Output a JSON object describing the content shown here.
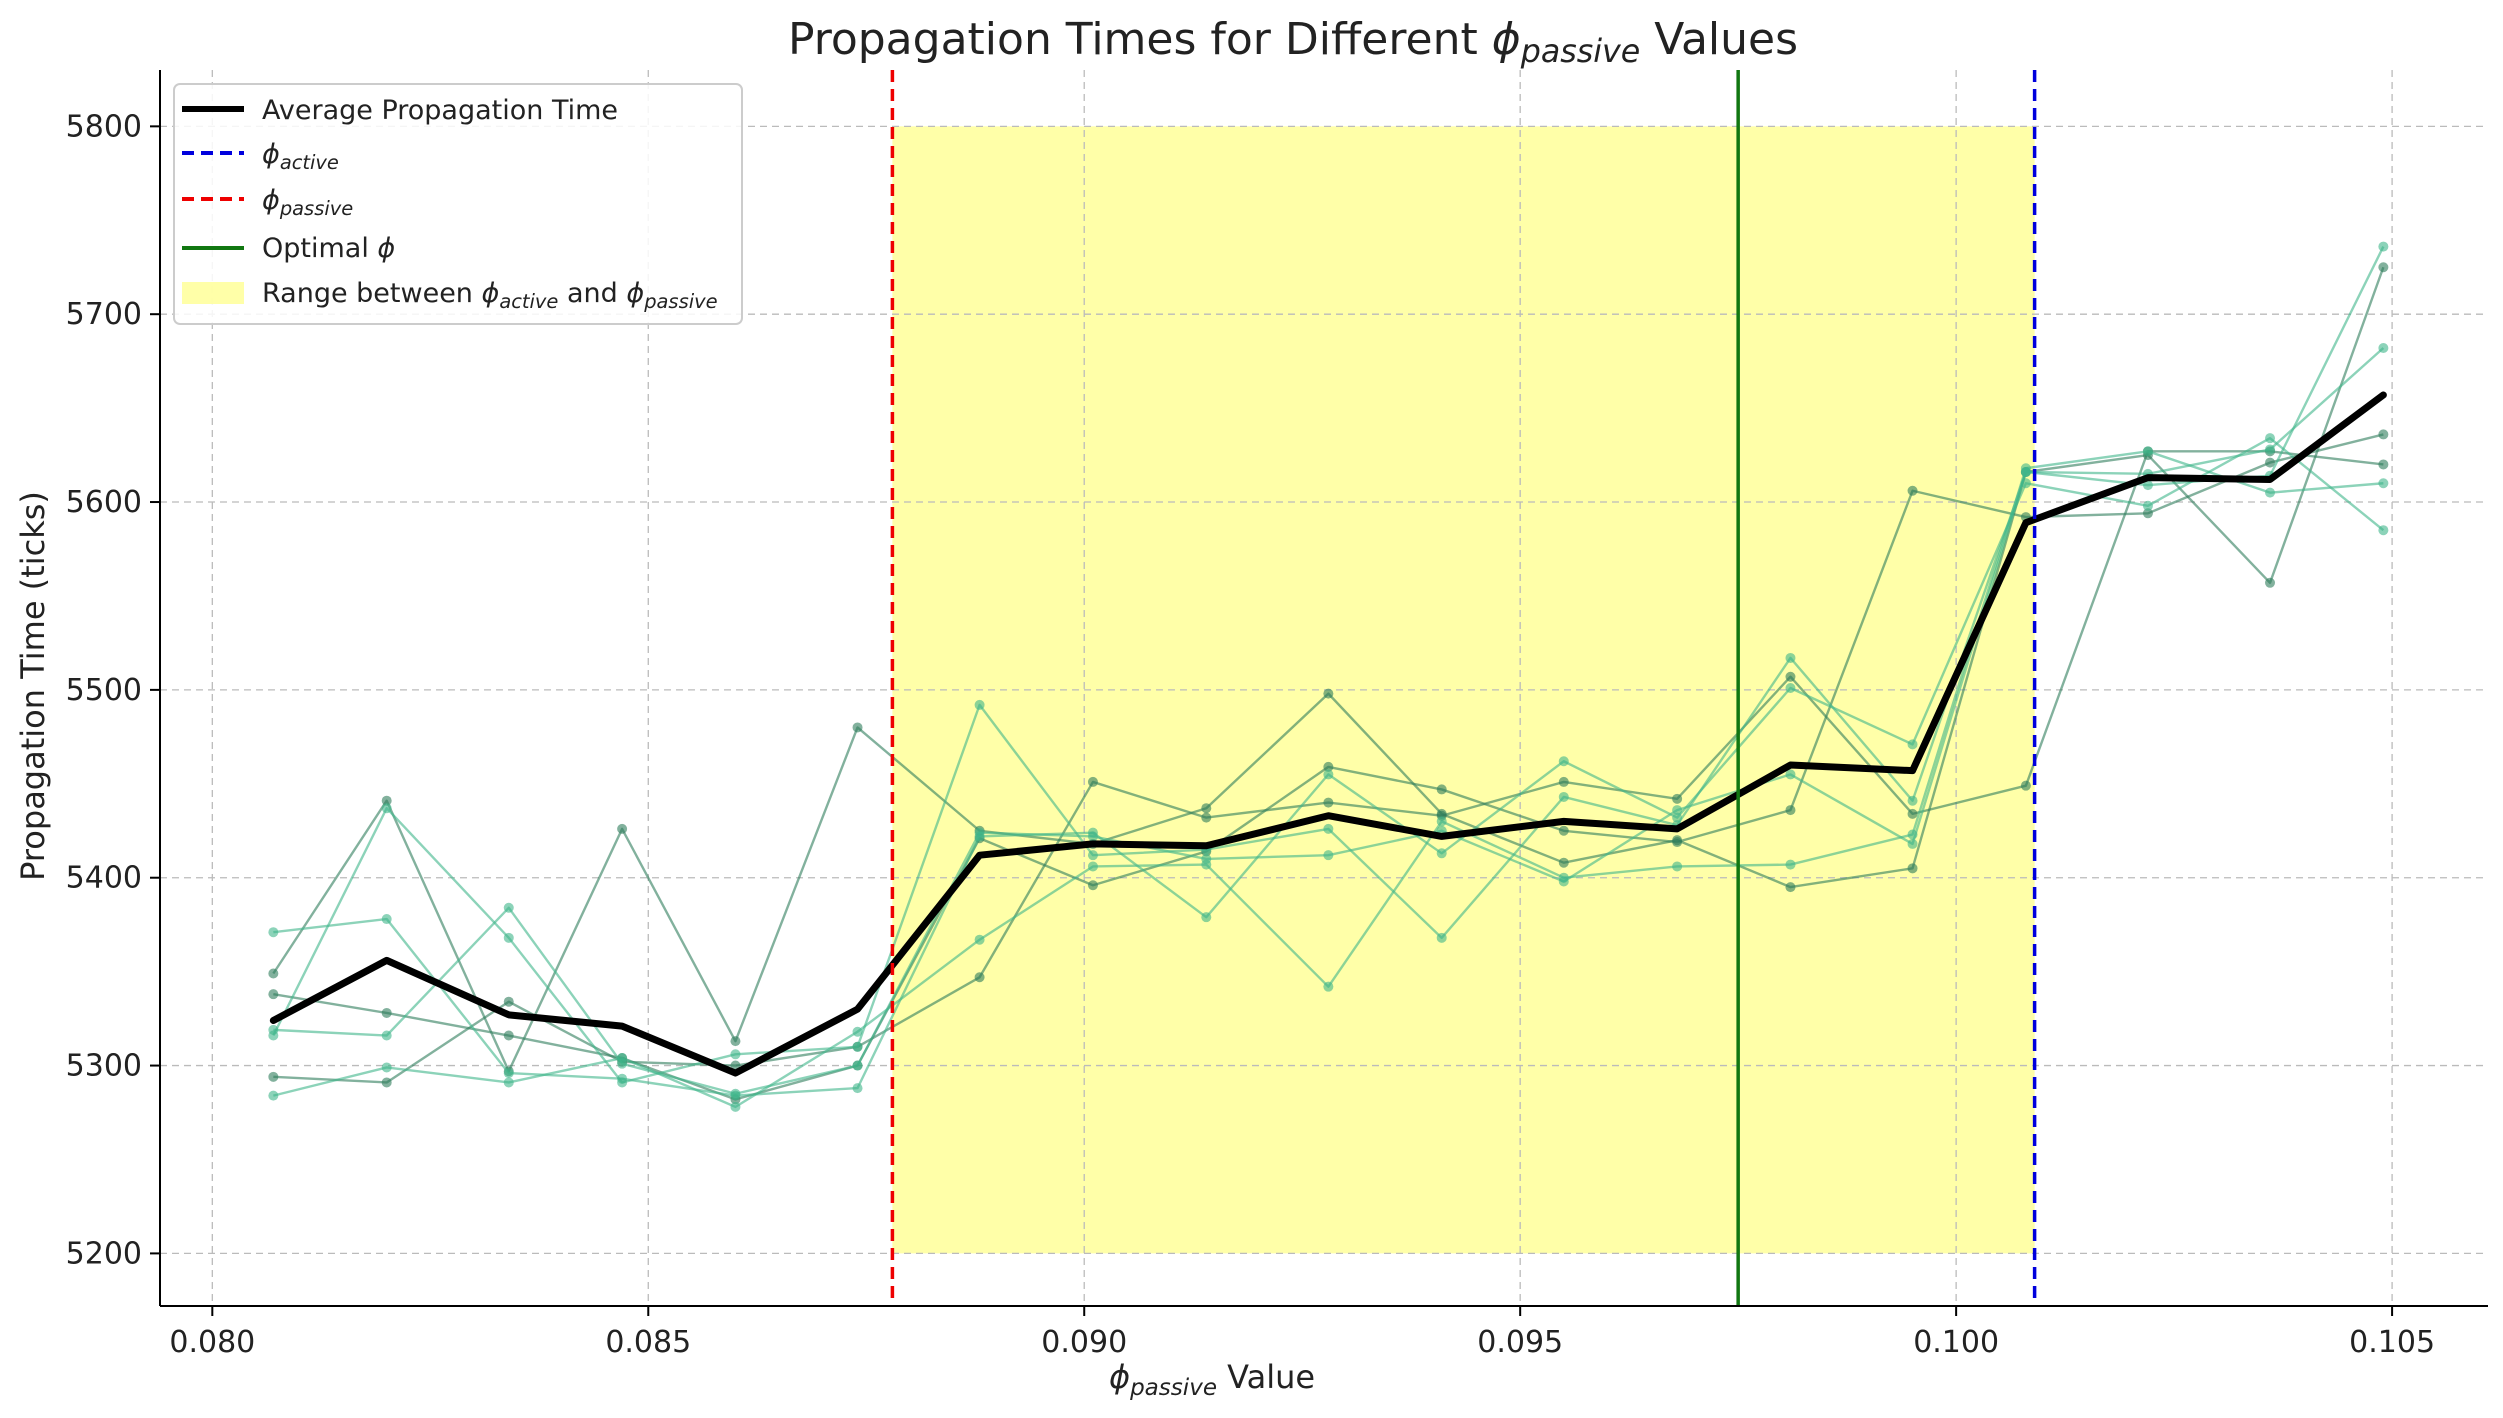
{
  "chart_data": {
    "type": "line",
    "title": {
      "prefix": "Propagation Times for Different ",
      "symbol": "ϕ",
      "subscript": "passive",
      "suffix": " Values"
    },
    "xlabel": {
      "symbol": "ϕ",
      "subscript": "passive",
      "suffix": " Value"
    },
    "ylabel": "Propagation Time (ticks)",
    "xlim": [
      0.0794,
      0.1061
    ],
    "ylim": [
      5172,
      5830
    ],
    "x_ticks": [
      0.08,
      0.085,
      0.09,
      0.095,
      0.1,
      0.105
    ],
    "x_tick_labels": [
      "0.080",
      "0.085",
      "0.090",
      "0.095",
      "0.100",
      "0.105"
    ],
    "y_ticks": [
      5200,
      5300,
      5400,
      5500,
      5600,
      5700,
      5800
    ],
    "y_tick_labels": [
      "5200",
      "5300",
      "5400",
      "5500",
      "5600",
      "5700",
      "5800"
    ],
    "grid": true,
    "legend_position": "top-left",
    "x": [
      0.0807,
      0.082,
      0.0834,
      0.0847,
      0.086,
      0.0874,
      0.0888,
      0.0901,
      0.0914,
      0.0928,
      0.0941,
      0.0955,
      0.0968,
      0.0981,
      0.0995,
      0.1008,
      0.1022,
      0.1036,
      0.1049
    ],
    "average": {
      "name": "Average Propagation Time",
      "color": "#000000",
      "values": [
        5324,
        5356,
        5327,
        5321,
        5296,
        5330,
        5412,
        5418,
        5417,
        5433,
        5422,
        5430,
        5426,
        5460,
        5457,
        5589,
        5613,
        5612,
        5657
      ]
    },
    "runs": [
      {
        "color": "#2e7d5b",
        "values": [
          5349,
          5441,
          5297,
          5426,
          5313,
          5480,
          5425,
          5418,
          5437,
          5498,
          5434,
          5408,
          5420,
          5395,
          5405,
          5616,
          5625,
          5557,
          5725
        ]
      },
      {
        "color": "#2e7d5b",
        "values": [
          5294,
          5291,
          5334,
          5302,
          5300,
          5310,
          5347,
          5451,
          5432,
          5440,
          5433,
          5451,
          5442,
          5507,
          5434,
          5449,
          5627,
          5627,
          5620
        ]
      },
      {
        "color": "#2e7d5b",
        "values": [
          5338,
          5328,
          5316,
          5304,
          5282,
          5300,
          5421,
          5396,
          5414,
          5459,
          5447,
          5425,
          5419,
          5436,
          5606,
          5592,
          5594,
          5621,
          5636
        ]
      },
      {
        "color": "#3fb68a",
        "values": [
          5371,
          5378,
          5296,
          5293,
          5284,
          5288,
          5422,
          5424,
          5379,
          5455,
          5413,
          5462,
          5432,
          5501,
          5471,
          5610,
          5598,
          5634,
          5585
        ]
      },
      {
        "color": "#3fb68a",
        "values": [
          5284,
          5299,
          5291,
          5304,
          5278,
          5318,
          5367,
          5406,
          5407,
          5342,
          5430,
          5400,
          5406,
          5407,
          5423,
          5618,
          5627,
          5605,
          5610
        ]
      },
      {
        "color": "#3fb68a",
        "values": [
          5316,
          5437,
          5368,
          5291,
          5306,
          5310,
          5492,
          5412,
          5415,
          5426,
          5368,
          5443,
          5428,
          5517,
          5441,
          5616,
          5615,
          5628,
          5682
        ]
      },
      {
        "color": "#3fb68a",
        "values": [
          5319,
          5316,
          5384,
          5301,
          5285,
          5300,
          5424,
          5422,
          5410,
          5412,
          5425,
          5398,
          5436,
          5455,
          5418,
          5616,
          5609,
          5614,
          5736
        ]
      }
    ],
    "phi_active": {
      "x": 0.1009,
      "color": "#0000dd"
    },
    "phi_passive": {
      "x": 0.0878,
      "color": "#ee0000"
    },
    "optimal_phi": {
      "x": 0.0975,
      "color": "#117711"
    },
    "shaded_range": {
      "x0": 0.0878,
      "x1": 0.1009,
      "y0": 5200,
      "y1": 5800,
      "color": "#ffff99"
    },
    "legend": {
      "average": "Average Propagation Time",
      "active": {
        "symbol": "ϕ",
        "subscript": "active"
      },
      "passive": {
        "symbol": "ϕ",
        "subscript": "passive"
      },
      "optimal": {
        "prefix": "Optimal ",
        "symbol": "ϕ"
      },
      "range": {
        "prefix": "Range between ",
        "symbol1": "ϕ",
        "subscript1": "active",
        "middle": " and ",
        "symbol2": "ϕ",
        "subscript2": "passive"
      }
    }
  }
}
